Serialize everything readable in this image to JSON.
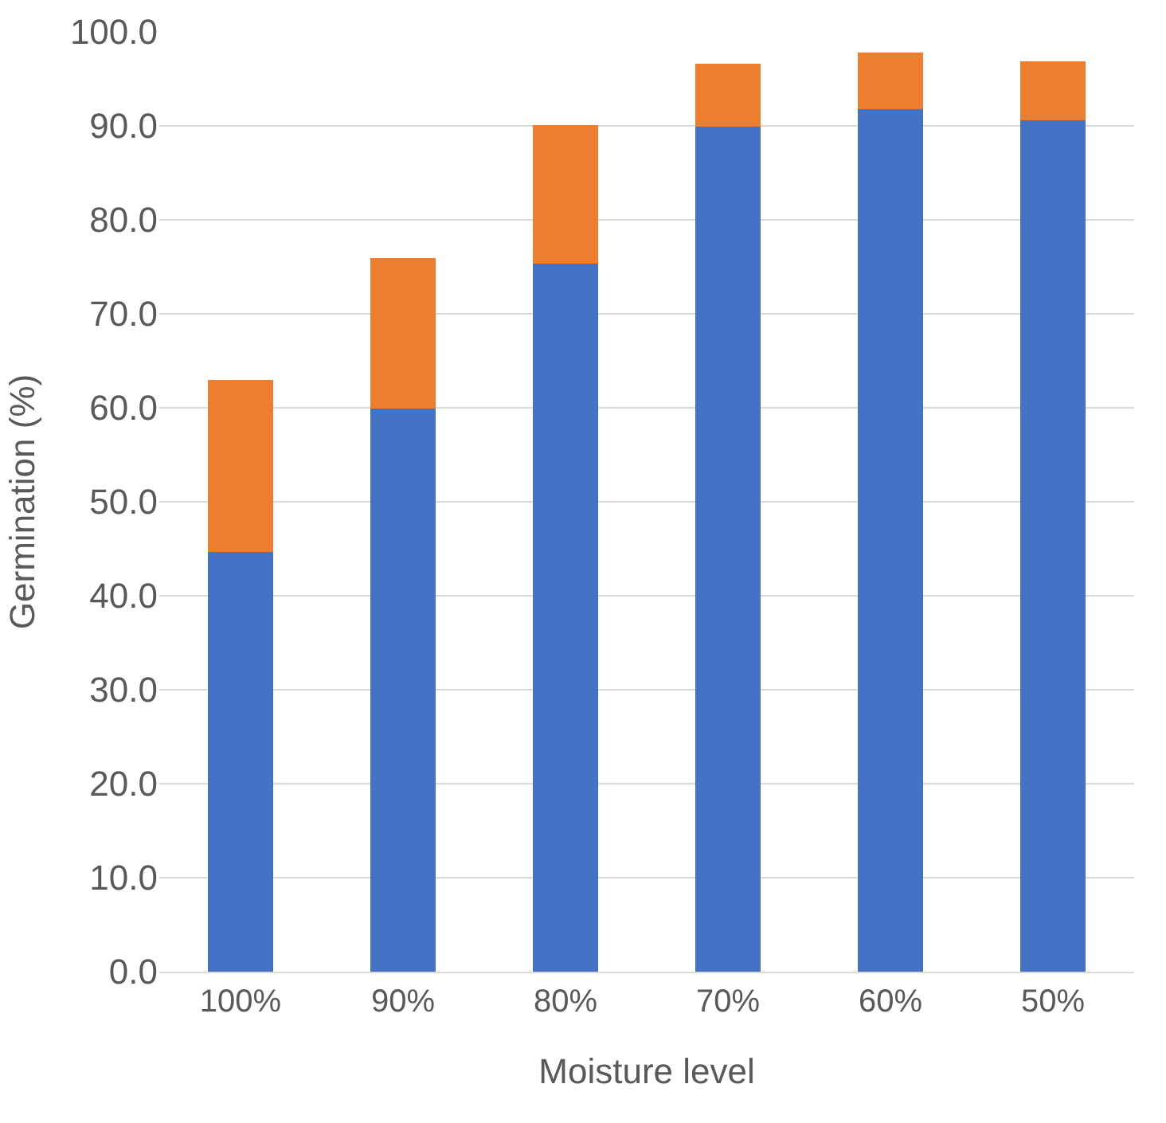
{
  "chart_data": {
    "type": "bar",
    "stacked": true,
    "xlabel": "Moisture level",
    "ylabel": "Germination (%)",
    "categories": [
      "100%",
      "90%",
      "80%",
      "70%",
      "60%",
      "50%"
    ],
    "series": [
      {
        "color": "#4472c4",
        "values": [
          44.7,
          59.9,
          75.3,
          89.9,
          91.8,
          90.6
        ]
      },
      {
        "color": "#ed7d31",
        "values": [
          18.3,
          16.0,
          14.8,
          6.7,
          6.0,
          6.3
        ]
      }
    ],
    "ylim": [
      0,
      100
    ],
    "yticks": [
      {
        "value": 0,
        "label": "0.0"
      },
      {
        "value": 10,
        "label": "10.0"
      },
      {
        "value": 20,
        "label": "20.0"
      },
      {
        "value": 30,
        "label": "30.0"
      },
      {
        "value": 40,
        "label": "40.0"
      },
      {
        "value": 50,
        "label": "50.0"
      },
      {
        "value": 60,
        "label": "60.0"
      },
      {
        "value": 70,
        "label": "70.0"
      },
      {
        "value": 80,
        "label": "80.0"
      },
      {
        "value": 90,
        "label": "90.0"
      },
      {
        "value": 100,
        "label": "100.0"
      }
    ],
    "grid": "y"
  }
}
